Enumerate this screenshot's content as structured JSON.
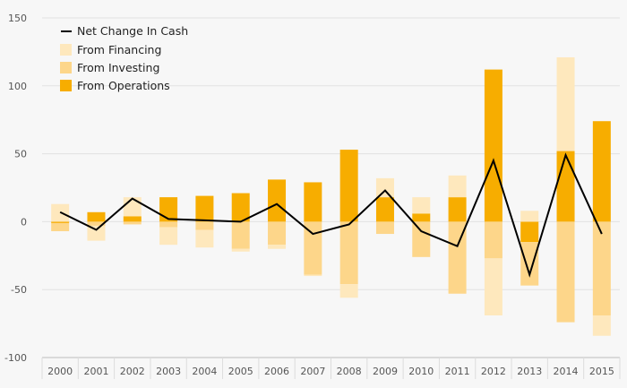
{
  "chart_data": {
    "type": "bar",
    "stacked": true,
    "categories": [
      "2000",
      "2001",
      "2002",
      "2003",
      "2004",
      "2005",
      "2006",
      "2007",
      "2008",
      "2009",
      "2010",
      "2011",
      "2012",
      "2013",
      "2014",
      "2015"
    ],
    "series": [
      {
        "name": "From Operations",
        "color": "#f7ad00",
        "values": [
          -1,
          7,
          4,
          18,
          19,
          21,
          31,
          29,
          53,
          18,
          6,
          18,
          112,
          -15,
          52,
          74
        ]
      },
      {
        "name": "From Investing",
        "color": "#fdd68a",
        "values": [
          -6,
          -3,
          -2,
          -4,
          -6,
          -20,
          -17,
          -39,
          -46,
          -9,
          -26,
          -53,
          -27,
          -32,
          -74,
          -69
        ]
      },
      {
        "name": "From Financing",
        "color": "#fee8bd",
        "values": [
          13,
          -11,
          14,
          -13,
          -13,
          -2,
          -3,
          -1,
          -10,
          14,
          12,
          16,
          -42,
          8,
          69,
          -15
        ]
      }
    ],
    "line": {
      "name": "Net Change In Cash",
      "color": "#000000",
      "values": [
        7,
        -6,
        17,
        2,
        1,
        0,
        13,
        -9,
        -2,
        23,
        -7,
        -18,
        45,
        -39,
        49,
        -9
      ]
    },
    "ylim": [
      -100,
      150
    ],
    "yticks": [
      "150",
      "100",
      "50",
      "0",
      "-50",
      "-100"
    ],
    "ytick_values": [
      150,
      100,
      50,
      0,
      -50,
      -100
    ],
    "grid": true,
    "legend_position": "top-left"
  }
}
